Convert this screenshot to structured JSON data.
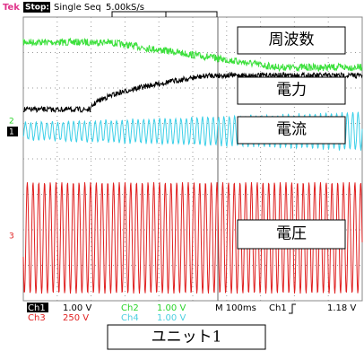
{
  "header": {
    "brand": "Tek",
    "state": "Stop:",
    "mode": "Single Seq",
    "rate": "5.00kS/s"
  },
  "markers": {
    "ch2": "2",
    "ch1": "1",
    "ch3": "3"
  },
  "labels": {
    "frequency": "周波数",
    "power": "電力",
    "current": "電流",
    "voltage": "電圧"
  },
  "footer": {
    "row1": {
      "ch1": "Ch1",
      "ch1_scale": "1.00 V",
      "ch2": "Ch2",
      "ch2_scale": "1.00 V",
      "timebase": "M 100ms",
      "trig_src": "Ch1",
      "trig_level": "1.18 V"
    },
    "row2": {
      "ch3": "Ch3",
      "ch3_scale": "250 V",
      "ch4": "Ch4",
      "ch4_scale": "1.00 V"
    }
  },
  "caption": "ユニット1"
}
